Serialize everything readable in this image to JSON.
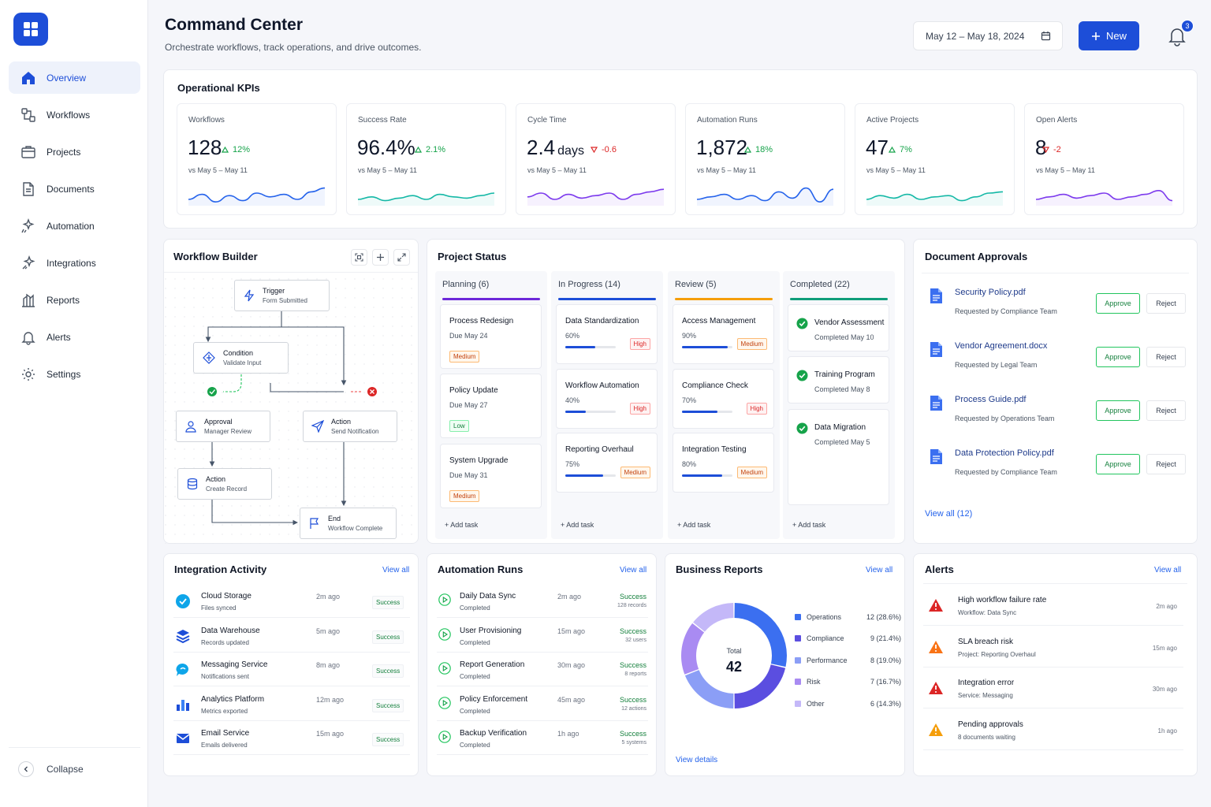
{
  "sidebar": {
    "items": [
      {
        "label": "Overview",
        "icon": "home-icon"
      },
      {
        "label": "Workflows",
        "icon": "workflow-icon"
      },
      {
        "label": "Projects",
        "icon": "folder-icon"
      },
      {
        "label": "Documents",
        "icon": "document-icon"
      },
      {
        "label": "Automation",
        "icon": "automation-icon"
      },
      {
        "label": "Integrations",
        "icon": "integrations-icon"
      },
      {
        "label": "Reports",
        "icon": "reports-icon"
      },
      {
        "label": "Alerts",
        "icon": "bell-icon"
      },
      {
        "label": "Settings",
        "icon": "gear-icon"
      }
    ],
    "collapse_label": "Collapse"
  },
  "header": {
    "title": "Command Center",
    "subtitle": "Orchestrate workflows, track operations, and drive outcomes.",
    "date_range": "May 12 – May 18, 2024",
    "new_label": "New",
    "notification_count": "3"
  },
  "kpis": {
    "title": "Operational KPIs",
    "items": [
      {
        "label": "Workflows",
        "value": "128",
        "unit": "",
        "delta": "12%",
        "direction": "up",
        "compare": "vs May 5 – May 11"
      },
      {
        "label": "Success Rate",
        "value": "96.4%",
        "unit": "",
        "delta": "2.1%",
        "direction": "up",
        "compare": "vs May 5 – May 11"
      },
      {
        "label": "Cycle Time",
        "value": "2.4",
        "unit": "days",
        "delta": "-0.6",
        "direction": "down",
        "compare": "vs May 5 – May 11"
      },
      {
        "label": "Automation Runs",
        "value": "1,872",
        "unit": "",
        "delta": "18%",
        "direction": "up",
        "compare": "vs May 5 – May 11"
      },
      {
        "label": "Active Projects",
        "value": "47",
        "unit": "",
        "delta": "7%",
        "direction": "up",
        "compare": "vs May 5 – May 11"
      },
      {
        "label": "Open Alerts",
        "value": "8",
        "unit": "",
        "delta": "-2",
        "direction": "down",
        "compare": "vs May 5 – May 11"
      }
    ]
  },
  "workflow_builder": {
    "title": "Workflow Builder",
    "nodes": {
      "trigger": {
        "title": "Trigger",
        "sub": "Form Submitted"
      },
      "condition": {
        "title": "Condition",
        "sub": "Validate Input"
      },
      "approval": {
        "title": "Approval",
        "sub": "Manager Review"
      },
      "action_notify": {
        "title": "Action",
        "sub": "Send Notification"
      },
      "action_record": {
        "title": "Action",
        "sub": "Create Record"
      },
      "end": {
        "title": "End",
        "sub": "Workflow Complete"
      }
    }
  },
  "project_status": {
    "title": "Project Status",
    "add_task": "+ Add task",
    "columns": [
      {
        "label": "Planning (6)",
        "color": "#6d28d9",
        "tasks": [
          {
            "name": "Process Redesign",
            "meta": "Due May 24",
            "tag": "Medium"
          },
          {
            "name": "Policy Update",
            "meta": "Due May 27",
            "tag": "Low"
          },
          {
            "name": "System Upgrade",
            "meta": "Due May 31",
            "tag": "Medium"
          }
        ]
      },
      {
        "label": "In Progress (14)",
        "color": "#1d4ed8",
        "tasks": [
          {
            "name": "Data Standardization",
            "progress": "60%",
            "tag": "High"
          },
          {
            "name": "Workflow Automation",
            "progress": "40%",
            "tag": "High"
          },
          {
            "name": "Reporting Overhaul",
            "progress": "75%",
            "tag": "Medium"
          }
        ]
      },
      {
        "label": "Review (5)",
        "color": "#f59e0b",
        "tasks": [
          {
            "name": "Access Management",
            "progress": "90%",
            "tag": "Medium"
          },
          {
            "name": "Compliance Check",
            "progress": "70%",
            "tag": "High"
          },
          {
            "name": "Integration Testing",
            "progress": "80%",
            "tag": "Medium"
          }
        ]
      },
      {
        "label": "Completed (22)",
        "color": "#0f9d7a",
        "tasks": [
          {
            "name": "Vendor Assessment",
            "meta": "Completed May 10"
          },
          {
            "name": "Training Program",
            "meta": "Completed May 8"
          },
          {
            "name": "Data Migration",
            "meta": "Completed May 5"
          }
        ]
      }
    ]
  },
  "document_approvals": {
    "title": "Document Approvals",
    "approve_label": "Approve",
    "reject_label": "Reject",
    "view_all": "View all (12)",
    "items": [
      {
        "name": "Security Policy.pdf",
        "requested": "Requested by Compliance Team"
      },
      {
        "name": "Vendor Agreement.docx",
        "requested": "Requested by Legal Team"
      },
      {
        "name": "Process Guide.pdf",
        "requested": "Requested by Operations Team"
      },
      {
        "name": "Data Protection Policy.pdf",
        "requested": "Requested by Compliance Team"
      }
    ]
  },
  "integration_activity": {
    "title": "Integration Activity",
    "view_all": "View all",
    "items": [
      {
        "name": "Cloud Storage",
        "sub": "Files synced",
        "time": "2m ago",
        "status": "Success",
        "icon": "cloud-icon"
      },
      {
        "name": "Data Warehouse",
        "sub": "Records updated",
        "time": "5m ago",
        "status": "Success",
        "icon": "layers-icon"
      },
      {
        "name": "Messaging Service",
        "sub": "Notifications sent",
        "time": "8m ago",
        "status": "Success",
        "icon": "chat-icon"
      },
      {
        "name": "Analytics Platform",
        "sub": "Metrics exported",
        "time": "12m ago",
        "status": "Success",
        "icon": "bar-chart-icon"
      },
      {
        "name": "Email Service",
        "sub": "Emails delivered",
        "time": "15m ago",
        "status": "Success",
        "icon": "mail-icon"
      }
    ]
  },
  "automation_runs": {
    "title": "Automation Runs",
    "view_all": "View all",
    "items": [
      {
        "name": "Daily Data Sync",
        "sub": "Completed",
        "time": "2m ago",
        "status": "Success",
        "detail": "128 records"
      },
      {
        "name": "User Provisioning",
        "sub": "Completed",
        "time": "15m ago",
        "status": "Success",
        "detail": "32 users"
      },
      {
        "name": "Report Generation",
        "sub": "Completed",
        "time": "30m ago",
        "status": "Success",
        "detail": "8 reports"
      },
      {
        "name": "Policy Enforcement",
        "sub": "Completed",
        "time": "45m ago",
        "status": "Success",
        "detail": "12 actions"
      },
      {
        "name": "Backup Verification",
        "sub": "Completed",
        "time": "1h ago",
        "status": "Success",
        "detail": "5 systems"
      }
    ]
  },
  "business_reports": {
    "title": "Business Reports",
    "view_all": "View all",
    "view_details": "View details",
    "total_label": "Total",
    "total_value": "42",
    "chart_data": {
      "type": "pie",
      "categories": [
        "Operations",
        "Compliance",
        "Performance",
        "Risk",
        "Other"
      ],
      "values": [
        12,
        9,
        8,
        7,
        6
      ],
      "labels": [
        "12 (28.6%)",
        "9 (21.4%)",
        "8 (19.0%)",
        "7 (16.7%)",
        "6 (14.3%)"
      ],
      "colors": [
        "#3b6ff0",
        "#5b4ee0",
        "#8b9ef6",
        "#a98bf2",
        "#c4b8f8"
      ],
      "legend": "right"
    }
  },
  "alerts": {
    "title": "Alerts",
    "view_all": "View all",
    "items": [
      {
        "name": "High workflow failure rate",
        "sub": "Workflow: Data Sync",
        "time": "2m ago",
        "level": "critical",
        "color": "#dc2626"
      },
      {
        "name": "SLA breach risk",
        "sub": "Project: Reporting Overhaul",
        "time": "15m ago",
        "level": "warning",
        "color": "#f97316"
      },
      {
        "name": "Integration error",
        "sub": "Service: Messaging",
        "time": "30m ago",
        "level": "critical",
        "color": "#dc2626"
      },
      {
        "name": "Pending approvals",
        "sub": "8 documents waiting",
        "time": "1h ago",
        "level": "info",
        "color": "#f59e0b"
      }
    ]
  }
}
